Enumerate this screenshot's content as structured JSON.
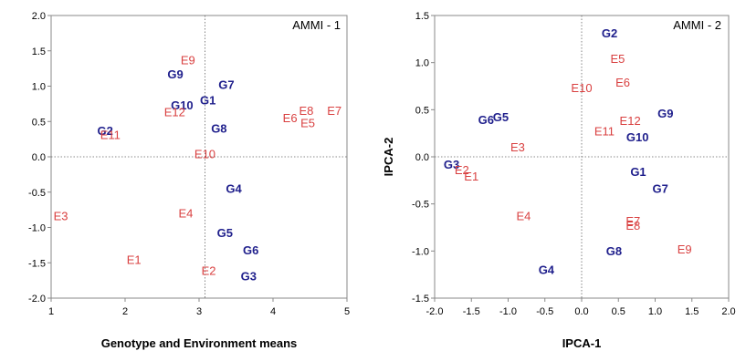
{
  "chart_data": [
    {
      "type": "scatter",
      "title": "AMMI - 1",
      "xlabel": "Genotype and Environment means",
      "ylabel": "",
      "xlim": [
        1,
        5
      ],
      "ylim": [
        -2.0,
        2.0
      ],
      "xticks": [
        1,
        2,
        3,
        4,
        5
      ],
      "yticks": [
        2.0,
        1.5,
        1.0,
        0.5,
        0.0,
        -0.5,
        -1.0,
        -1.5,
        -2.0
      ],
      "x_reference_line": 3.08,
      "y_reference_line": 0.0,
      "grid": false,
      "colors": {
        "genotype": "#1f1f8c",
        "environment": "#d94040"
      },
      "series": [
        {
          "kind": "genotype",
          "points": [
            {
              "label": "G1",
              "x": 3.12,
              "y": 0.8
            },
            {
              "label": "G2",
              "x": 1.73,
              "y": 0.37
            },
            {
              "label": "G3",
              "x": 3.67,
              "y": -1.69
            },
            {
              "label": "G4",
              "x": 3.47,
              "y": -0.45
            },
            {
              "label": "G5",
              "x": 3.35,
              "y": -1.08
            },
            {
              "label": "G6",
              "x": 3.7,
              "y": -1.32
            },
            {
              "label": "G7",
              "x": 3.37,
              "y": 1.02
            },
            {
              "label": "G8",
              "x": 3.27,
              "y": 0.4
            },
            {
              "label": "G9",
              "x": 2.68,
              "y": 1.17
            },
            {
              "label": "G10",
              "x": 2.77,
              "y": 0.73
            }
          ]
        },
        {
          "kind": "environment",
          "points": [
            {
              "label": "E1",
              "x": 2.12,
              "y": -1.46
            },
            {
              "label": "E2",
              "x": 3.13,
              "y": -1.61
            },
            {
              "label": "E3",
              "x": 1.13,
              "y": -0.84
            },
            {
              "label": "E4",
              "x": 2.82,
              "y": -0.8
            },
            {
              "label": "E5",
              "x": 4.47,
              "y": 0.48
            },
            {
              "label": "E6",
              "x": 4.23,
              "y": 0.55
            },
            {
              "label": "E7",
              "x": 4.83,
              "y": 0.65
            },
            {
              "label": "E8",
              "x": 4.45,
              "y": 0.65
            },
            {
              "label": "E9",
              "x": 2.85,
              "y": 1.37
            },
            {
              "label": "E10",
              "x": 3.08,
              "y": 0.04
            },
            {
              "label": "E11",
              "x": 1.8,
              "y": 0.31
            },
            {
              "label": "E12",
              "x": 2.67,
              "y": 0.63
            }
          ]
        }
      ]
    },
    {
      "type": "scatter",
      "title": "AMMI - 2",
      "xlabel": "IPCA-1",
      "ylabel": "IPCA-2",
      "xlim": [
        -2.0,
        2.0
      ],
      "ylim": [
        -1.5,
        1.5
      ],
      "xticks": [
        -2.0,
        -1.5,
        -1.0,
        -0.5,
        0.0,
        0.5,
        1.0,
        1.5,
        2.0
      ],
      "yticks": [
        1.5,
        1.0,
        0.5,
        0.0,
        -0.5,
        -1.0,
        -1.5
      ],
      "x_reference_line": 0.0,
      "y_reference_line": 0.0,
      "grid": false,
      "colors": {
        "genotype": "#1f1f8c",
        "environment": "#d94040"
      },
      "series": [
        {
          "kind": "genotype",
          "points": [
            {
              "label": "G1",
              "x": 0.77,
              "y": -0.16
            },
            {
              "label": "G2",
              "x": 0.38,
              "y": 1.31
            },
            {
              "label": "G3",
              "x": -1.77,
              "y": -0.08
            },
            {
              "label": "G4",
              "x": -0.48,
              "y": -1.2
            },
            {
              "label": "G5",
              "x": -1.1,
              "y": 0.42
            },
            {
              "label": "G6",
              "x": -1.3,
              "y": 0.39
            },
            {
              "label": "G7",
              "x": 1.07,
              "y": -0.34
            },
            {
              "label": "G8",
              "x": 0.44,
              "y": -1.0
            },
            {
              "label": "G9",
              "x": 1.14,
              "y": 0.46
            },
            {
              "label": "G10",
              "x": 0.76,
              "y": 0.21
            }
          ]
        },
        {
          "kind": "environment",
          "points": [
            {
              "label": "E1",
              "x": -1.5,
              "y": -0.21
            },
            {
              "label": "E2",
              "x": -1.63,
              "y": -0.14
            },
            {
              "label": "E3",
              "x": -0.87,
              "y": 0.1
            },
            {
              "label": "E4",
              "x": -0.79,
              "y": -0.63
            },
            {
              "label": "E5",
              "x": 0.49,
              "y": 1.04
            },
            {
              "label": "E6",
              "x": 0.56,
              "y": 0.79
            },
            {
              "label": "E7",
              "x": 0.7,
              "y": -0.68
            },
            {
              "label": "E8",
              "x": 0.7,
              "y": -0.73
            },
            {
              "label": "E9",
              "x": 1.4,
              "y": -0.98
            },
            {
              "label": "E10",
              "x": 0.0,
              "y": 0.73
            },
            {
              "label": "E11",
              "x": 0.31,
              "y": 0.27
            },
            {
              "label": "E12",
              "x": 0.66,
              "y": 0.38
            }
          ]
        }
      ]
    }
  ]
}
